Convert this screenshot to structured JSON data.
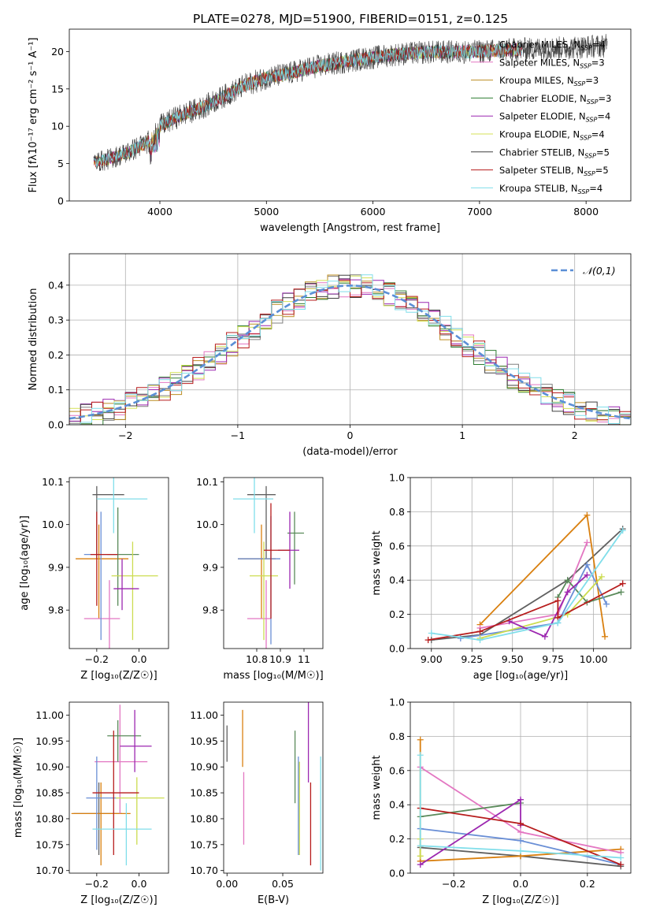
{
  "figure_title": "PLATE=0278, MJD=51900, FIBERID=0151, z=0.125",
  "model_colors": [
    "#808080",
    "#e377c2",
    "#bc8d22",
    "#2e7d32",
    "#9c27b0",
    "#d4e157",
    "#404040",
    "#b71c1c",
    "#80deea"
  ],
  "fit_colors": [
    "#606060",
    "#d98010",
    "#e377c2",
    "#5a8a5a",
    "#6a8fd6",
    "#ccdc50",
    "#9c27b0",
    "#b71c1c",
    "#80deea"
  ],
  "chart_data": [
    {
      "id": "spectrum",
      "type": "line",
      "title": "PLATE=0278, MJD=51900, FIBERID=0151, z=0.125",
      "xlabel": "wavelength [Angstrom, rest frame]",
      "ylabel": "Flux [fλ10⁻¹⁷ erg cm⁻² s⁻¹ A⁻¹]",
      "xlim": [
        3150,
        8420
      ],
      "ylim": [
        0,
        23
      ],
      "xticks": [
        4000,
        5000,
        6000,
        7000,
        8000
      ],
      "yticks": [
        0,
        5,
        10,
        15,
        20
      ],
      "legend_position": "top-right",
      "legend": [
        "Chabrier MILES, N_SSP=4",
        "Salpeter MILES, N_SSP=3",
        "Kroupa MILES, N_SSP=3",
        "Chabrier ELODIE, N_SSP=3",
        "Salpeter ELODIE, N_SSP=4",
        "Kroupa ELODIE, N_SSP=4",
        "Chabrier STELIB, N_SSP=5",
        "Salpeter STELIB, N_SSP=5",
        "Kroupa STELIB, N_SSP=4"
      ],
      "continuum": {
        "x": [
          3380,
          3500,
          3700,
          3900,
          4000,
          4200,
          4400,
          4600,
          4800,
          5000,
          5200,
          5400,
          5600,
          5800,
          6000,
          6200,
          6500,
          7000,
          7400,
          7800,
          8200
        ],
        "y": [
          5.2,
          5.5,
          6.5,
          8.0,
          10.0,
          11.5,
          12.5,
          14.0,
          15.5,
          16.5,
          17.0,
          17.8,
          18.3,
          18.8,
          19.2,
          19.6,
          19.9,
          20.0,
          20.3,
          20.5,
          20.8
        ]
      },
      "drops": [
        {
          "x": 3530,
          "model": "Salpeter MILES"
        },
        {
          "x": 3920,
          "model": "Kroupa MILES"
        },
        {
          "x": 6790,
          "model": "Kroupa ELODIE"
        },
        {
          "x": 7410,
          "model": "Salpeter MILES"
        }
      ]
    },
    {
      "id": "residuals",
      "type": "line",
      "xlabel": "(data-model)/error",
      "ylabel": "Normed distribution",
      "xlim": [
        -2.5,
        2.5
      ],
      "ylim": [
        0,
        0.49
      ],
      "xticks": [
        -2,
        -1,
        0,
        1,
        2
      ],
      "yticks": [
        0.0,
        0.1,
        0.2,
        0.3,
        0.4
      ],
      "grid": true,
      "legend_position": "top-right",
      "gaussian_label": "𝒩(0,1)",
      "bin_width": 0.1
    },
    {
      "id": "age_vs_Z",
      "type": "scatter",
      "xlabel": "Z [log₁₀(Z/Z☉)]",
      "ylabel": "age  [log₁₀(age/yr)]",
      "xlim": [
        -0.33,
        0.14
      ],
      "ylim": [
        9.71,
        10.11
      ],
      "xticks": [
        -0.2,
        0.0
      ],
      "xticklabels": [
        "−0.2",
        "0.0"
      ],
      "yticks": [
        9.8,
        9.9,
        10.0,
        10.1
      ],
      "points": [
        {
          "x": -0.2,
          "y": 10.07,
          "xerr": [
            0.02,
            0.13
          ],
          "yerr": [
            0.15,
            0.02
          ]
        },
        {
          "x": -0.19,
          "y": 9.92,
          "xerr": [
            0.11,
            0.14
          ],
          "yerr": [
            0.14,
            0.08
          ]
        },
        {
          "x": -0.14,
          "y": 9.78,
          "xerr": [
            0.12,
            0.05
          ],
          "yerr": [
            0.07,
            0.09
          ]
        },
        {
          "x": -0.1,
          "y": 9.93,
          "xerr": [
            0.05,
            0.1
          ],
          "yerr": [
            0.12,
            0.11
          ]
        },
        {
          "x": -0.18,
          "y": 9.93,
          "xerr": [
            0.08,
            0.08
          ],
          "yerr": [
            0.2,
            0.1
          ]
        },
        {
          "x": -0.03,
          "y": 9.88,
          "xerr": [
            0.1,
            0.12
          ],
          "yerr": [
            0.15,
            0.08
          ]
        },
        {
          "x": -0.08,
          "y": 9.85,
          "xerr": [
            0.04,
            0.08
          ],
          "yerr": [
            0.05,
            0.07
          ]
        },
        {
          "x": -0.2,
          "y": 9.93,
          "xerr": [
            0.03,
            0.1
          ],
          "yerr": [
            0.12,
            0.1
          ]
        },
        {
          "x": -0.12,
          "y": 10.06,
          "xerr": [
            0.08,
            0.16
          ],
          "yerr": [
            0.08,
            0.05
          ]
        }
      ]
    },
    {
      "id": "age_vs_mass",
      "type": "scatter",
      "xlabel": "mass [log₁₀(M/M☉)]",
      "ylabel": "",
      "xlim": [
        10.66,
        11.08
      ],
      "ylim": [
        9.71,
        10.11
      ],
      "xticks": [
        10.8,
        10.9,
        11.0
      ],
      "yticks": [
        9.8,
        9.9,
        10.0,
        10.1
      ],
      "points": [
        {
          "x": 10.84,
          "y": 10.07,
          "xerr": [
            0.08,
            0.04
          ],
          "yerr": [
            0.15,
            0.02
          ]
        },
        {
          "x": 10.82,
          "y": 9.92,
          "xerr": [
            0.1,
            0.06
          ],
          "yerr": [
            0.14,
            0.08
          ]
        },
        {
          "x": 10.84,
          "y": 9.78,
          "xerr": [
            0.08,
            0.02
          ],
          "yerr": [
            0.07,
            0.09
          ]
        },
        {
          "x": 10.96,
          "y": 9.98,
          "xerr": [
            0.03,
            0.04
          ],
          "yerr": [
            0.12,
            0.05
          ]
        },
        {
          "x": 10.86,
          "y": 9.92,
          "xerr": [
            0.14,
            0.04
          ],
          "yerr": [
            0.2,
            0.1
          ]
        },
        {
          "x": 10.83,
          "y": 9.88,
          "xerr": [
            0.06,
            0.06
          ],
          "yerr": [
            0.15,
            0.08
          ]
        },
        {
          "x": 10.94,
          "y": 9.94,
          "xerr": [
            0.05,
            0.04
          ],
          "yerr": [
            0.09,
            0.09
          ]
        },
        {
          "x": 10.86,
          "y": 9.94,
          "xerr": [
            0.03,
            0.08
          ],
          "yerr": [
            0.16,
            0.11
          ]
        },
        {
          "x": 10.79,
          "y": 10.06,
          "xerr": [
            0.09,
            0.08
          ],
          "yerr": [
            0.08,
            0.05
          ]
        }
      ]
    },
    {
      "id": "weights_vs_age",
      "type": "line",
      "xlabel": "age  [log₁₀(age/yr)]",
      "ylabel": "mass weight",
      "xlim": [
        8.87,
        10.23
      ],
      "ylim": [
        0,
        1
      ],
      "xticks": [
        9.0,
        9.25,
        9.5,
        9.75,
        10.0
      ],
      "xticklabels": [
        "9.00",
        "9.25",
        "9.50",
        "9.75",
        "10.00"
      ],
      "yticks": [
        0.0,
        0.2,
        0.4,
        0.6,
        0.8,
        1.0
      ],
      "grid": true,
      "series": [
        {
          "x": [
            9.0,
            9.3,
            9.84,
            10.18
          ],
          "y": [
            0.05,
            0.08,
            0.4,
            0.7
          ]
        },
        {
          "x": [
            9.3,
            9.96,
            10.07
          ],
          "y": [
            0.14,
            0.78,
            0.07
          ]
        },
        {
          "x": [
            9.3,
            9.78,
            9.96
          ],
          "y": [
            0.12,
            0.2,
            0.62
          ]
        },
        {
          "x": [
            9.78,
            9.84,
            9.96,
            10.17
          ],
          "y": [
            0.3,
            0.4,
            0.27,
            0.33
          ]
        },
        {
          "x": [
            9.18,
            9.78,
            9.96,
            10.08
          ],
          "y": [
            0.06,
            0.15,
            0.49,
            0.26
          ]
        },
        {
          "x": [
            9.3,
            9.84,
            10.05
          ],
          "y": [
            0.06,
            0.2,
            0.42
          ]
        },
        {
          "x": [
            9.48,
            9.7,
            9.84,
            9.96
          ],
          "y": [
            0.16,
            0.07,
            0.33,
            0.43
          ]
        },
        {
          "x": [
            8.98,
            9.3,
            9.78,
            9.78,
            10.18
          ],
          "y": [
            0.05,
            0.1,
            0.28,
            0.18,
            0.38
          ]
        },
        {
          "x": [
            9.0,
            9.3,
            9.78,
            10.18
          ],
          "y": [
            0.09,
            0.05,
            0.15,
            0.69
          ]
        }
      ]
    },
    {
      "id": "mass_vs_Z",
      "type": "scatter",
      "xlabel": "Z [log₁₀(Z/Z☉)]",
      "ylabel": "mass [log₁₀(M/M☉)]",
      "xlim": [
        -0.33,
        0.14
      ],
      "ylim": [
        10.695,
        11.025
      ],
      "xticks": [
        -0.2,
        0.0
      ],
      "xticklabels": [
        "−0.2",
        "0.0"
      ],
      "yticks": [
        10.7,
        10.75,
        10.8,
        10.85,
        10.9,
        10.95,
        11.0
      ],
      "points": [
        {
          "x": -0.19,
          "y": 10.81,
          "xerr": [
            0.12,
            0.11
          ],
          "yerr": [
            0.08,
            0.06
          ]
        },
        {
          "x": -0.18,
          "y": 10.81,
          "xerr": [
            0.14,
            0.14
          ],
          "yerr": [
            0.1,
            0.06
          ]
        },
        {
          "x": -0.09,
          "y": 10.91,
          "xerr": [
            0.12,
            0.13
          ],
          "yerr": [
            0.1,
            0.11
          ]
        },
        {
          "x": -0.1,
          "y": 10.96,
          "xerr": [
            0.05,
            0.11
          ],
          "yerr": [
            0.05,
            0.03
          ]
        },
        {
          "x": -0.2,
          "y": 10.84,
          "xerr": [
            0.05,
            0.1
          ],
          "yerr": [
            0.1,
            0.08
          ]
        },
        {
          "x": -0.01,
          "y": 10.84,
          "xerr": [
            0.1,
            0.13
          ],
          "yerr": [
            0.09,
            0.04
          ]
        },
        {
          "x": -0.02,
          "y": 10.94,
          "xerr": [
            0.07,
            0.08
          ],
          "yerr": [
            0.05,
            0.07
          ]
        },
        {
          "x": -0.12,
          "y": 10.85,
          "xerr": [
            0.1,
            0.12
          ],
          "yerr": [
            0.12,
            0.12
          ]
        },
        {
          "x": -0.06,
          "y": 10.78,
          "xerr": [
            0.16,
            0.12
          ],
          "yerr": [
            0.07,
            0.05
          ]
        }
      ]
    },
    {
      "id": "mass_vs_EBV",
      "type": "scatter",
      "xlabel": "E(B-V)",
      "ylabel": "",
      "xlim": [
        -0.003,
        0.086
      ],
      "ylim": [
        10.695,
        11.025
      ],
      "xticks": [
        0.0,
        0.05
      ],
      "xticklabels": [
        "0.00",
        "0.05"
      ],
      "yticks": [
        10.7,
        10.75,
        10.8,
        10.85,
        10.9,
        10.95,
        11.0
      ],
      "points": [
        {
          "x": 0.0,
          "y": 10.96,
          "yerr": [
            0.05,
            0.02
          ]
        },
        {
          "x": 0.014,
          "y": 10.95,
          "yerr": [
            0.05,
            0.06
          ]
        },
        {
          "x": 0.015,
          "y": 10.82,
          "yerr": [
            0.07,
            0.07
          ]
        },
        {
          "x": 0.061,
          "y": 10.9,
          "yerr": [
            0.07,
            0.07
          ]
        },
        {
          "x": 0.064,
          "y": 10.83,
          "yerr": [
            0.1,
            0.09
          ]
        },
        {
          "x": 0.065,
          "y": 10.81,
          "yerr": [
            0.08,
            0.1
          ]
        },
        {
          "x": 0.073,
          "y": 10.95,
          "yerr": [
            0.08,
            0.08
          ]
        },
        {
          "x": 0.075,
          "y": 10.79,
          "yerr": [
            0.08,
            0.08
          ]
        },
        {
          "x": 0.084,
          "y": 10.81,
          "yerr": [
            0.11,
            0.11
          ]
        }
      ]
    },
    {
      "id": "weights_vs_Z",
      "type": "line",
      "xlabel": "Z [log₁₀(Z/Z☉)]",
      "ylabel": "mass weight",
      "xlim": [
        -0.33,
        0.33
      ],
      "ylim": [
        0,
        1
      ],
      "xticks": [
        -0.2,
        0.0,
        0.2
      ],
      "xticklabels": [
        "−0.2",
        "0.0",
        "0.2"
      ],
      "yticks": [
        0.0,
        0.2,
        0.4,
        0.6,
        0.8,
        1.0
      ],
      "grid": true,
      "series": [
        {
          "x": [
            -0.3,
            0.0,
            0.3
          ],
          "y": [
            0.15,
            0.1,
            0.04
          ]
        },
        {
          "x": [
            -0.3,
            -0.3,
            0.0,
            0.3
          ],
          "y": [
            0.78,
            0.07,
            0.1,
            0.14
          ]
        },
        {
          "x": [
            -0.3,
            0.0,
            0.3
          ],
          "y": [
            0.62,
            0.24,
            0.12
          ]
        },
        {
          "x": [
            -0.3,
            0.0
          ],
          "y": [
            0.33,
            0.41
          ]
        },
        {
          "x": [
            -0.3,
            0.0,
            0.3
          ],
          "y": [
            0.26,
            0.19,
            0.05
          ]
        },
        {
          "x": [
            -0.3,
            -0.3
          ],
          "y": [
            0.1,
            0.2
          ]
        },
        {
          "x": [
            -0.3,
            0.0,
            0.0
          ],
          "y": [
            0.05,
            0.43,
            0.28
          ]
        },
        {
          "x": [
            -0.3,
            0.0,
            0.3
          ],
          "y": [
            0.38,
            0.29,
            0.05
          ]
        },
        {
          "x": [
            -0.3,
            -0.3,
            0.0,
            0.3
          ],
          "y": [
            0.69,
            0.16,
            0.13,
            0.09
          ]
        }
      ]
    }
  ]
}
